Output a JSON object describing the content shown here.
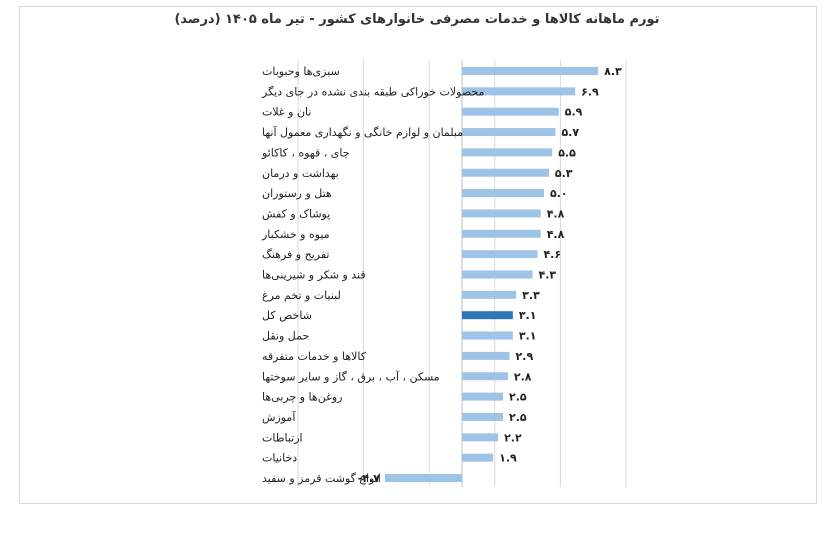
{
  "chart_data": {
    "type": "bar",
    "orientation": "horizontal",
    "title": "تورم ماهانه کالاها و خدمات مصرفی خانوارهای کشور - تیر ماه ۱۴۰۵ (درصد)",
    "categories": [
      "سبزی‌ها وحبوبات",
      "محصولات خوراکی طبقه بندی نشده در جای دیگر",
      "نان و غلات",
      "مبلمان و لوازم خانگی و نگهداری معمول آنها",
      "چای ، قهوه ، کاکائو",
      "بهداشت و درمان",
      "هتل و رستوران",
      "پوشاک و کفش",
      "میوه و خشکبار",
      "تفریح و فرهنگ",
      "قند و شکر و شیرینی‌ها",
      "لبنیات و تخم مرغ",
      "شاخص کل",
      "حمل ونقل",
      "کالاها و خدمات متفرقه",
      "مسکن ، آب ، برق ، گاز و سایر سوختها",
      "روغن‌ها و چربی‌ها",
      "آموزش",
      "ارتباطات",
      "دخانیات",
      "انواع گوشت قرمز و سفید"
    ],
    "values": [
      8.3,
      6.9,
      5.9,
      5.7,
      5.5,
      5.3,
      5.0,
      4.8,
      4.8,
      4.6,
      4.3,
      3.3,
      3.1,
      3.1,
      2.9,
      2.8,
      2.5,
      2.5,
      2.2,
      1.9,
      -4.7
    ],
    "value_labels": [
      "۸.۳",
      "۶.۹",
      "۵.۹",
      "۵.۷",
      "۵.۵",
      "۵.۳",
      "۵.۰",
      "۴.۸",
      "۴.۸",
      "۴.۶",
      "۴.۳",
      "۳.۳",
      "۳.۱",
      "۳.۱",
      "۲.۹",
      "۲.۸",
      "۲.۵",
      "۲.۵",
      "۲.۲",
      "۱.۹",
      "-۴.۷"
    ],
    "highlight_category": "شاخص کل",
    "xlim": [
      -10,
      10
    ],
    "gridlines": [
      -10,
      -6,
      -2,
      2,
      6,
      10
    ],
    "grid": true,
    "legend": "none",
    "colors": {
      "bar": "#9dc3e6",
      "highlight": "#2e75b6",
      "grid": "#d9d9d9",
      "axis": "#bfbfbf"
    }
  }
}
